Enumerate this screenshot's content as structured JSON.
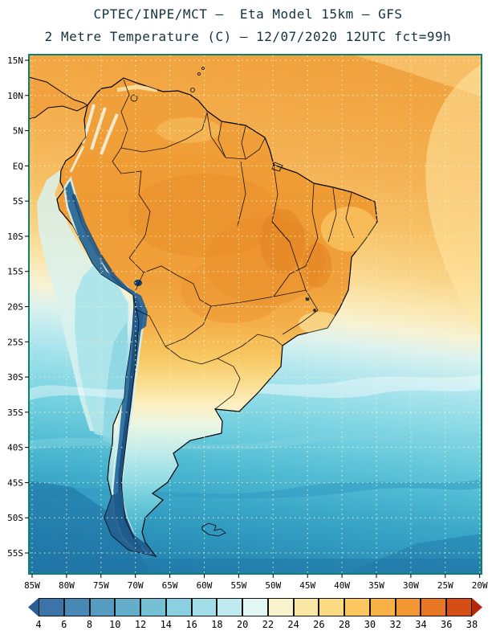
{
  "title": {
    "line1": "CPTEC/INPE/MCT –  Eta Model 15km – GFS",
    "line2": "2 Metre Temperature (C) – 12/07/2020 12UTC fct=99h"
  },
  "map": {
    "lat_labels": [
      "15N",
      "10N",
      "5N",
      "EQ",
      "5S",
      "10S",
      "15S",
      "20S",
      "25S",
      "30S",
      "35S",
      "40S",
      "45S",
      "50S",
      "55S"
    ],
    "lon_labels": [
      "85W",
      "80W",
      "75W",
      "70W",
      "65W",
      "60W",
      "55W",
      "50W",
      "45W",
      "40W",
      "35W",
      "30W",
      "25W",
      "20W"
    ]
  },
  "colorbar": {
    "tick_values": [
      "4",
      "6",
      "8",
      "10",
      "12",
      "14",
      "16",
      "18",
      "20",
      "22",
      "24",
      "26",
      "28",
      "30",
      "32",
      "34",
      "36",
      "38"
    ],
    "segment_colors": [
      "#2a5e94",
      "#3a74a8",
      "#4888b4",
      "#569cc0",
      "#64aecb",
      "#76c0d6",
      "#8ad0e0",
      "#a2dde8",
      "#bfeaf0",
      "#e2f6f3",
      "#f8f3cc",
      "#fbe7a4",
      "#fbda82",
      "#fbc75e",
      "#f8b146",
      "#f29732",
      "#e77722",
      "#d54e16",
      "#b52708"
    ]
  },
  "style": {
    "frame_color": "#0e8170",
    "grid_color": "#f6f2c0",
    "title_color": "#14323c",
    "label_color": "#000000"
  },
  "chart_data": {
    "type": "heatmap",
    "title": "2 Metre Temperature (C)",
    "model": "Eta Model 15km – GFS",
    "source": "CPTEC/INPE/MCT",
    "valid_time": "12/07/2020 12UTC fct=99h",
    "units": "C",
    "scale_min": 4,
    "scale_max": 38,
    "scale_step": 2,
    "lat_range": [
      "15N",
      "55S"
    ],
    "lon_range": [
      "85W",
      "20W"
    ]
  }
}
